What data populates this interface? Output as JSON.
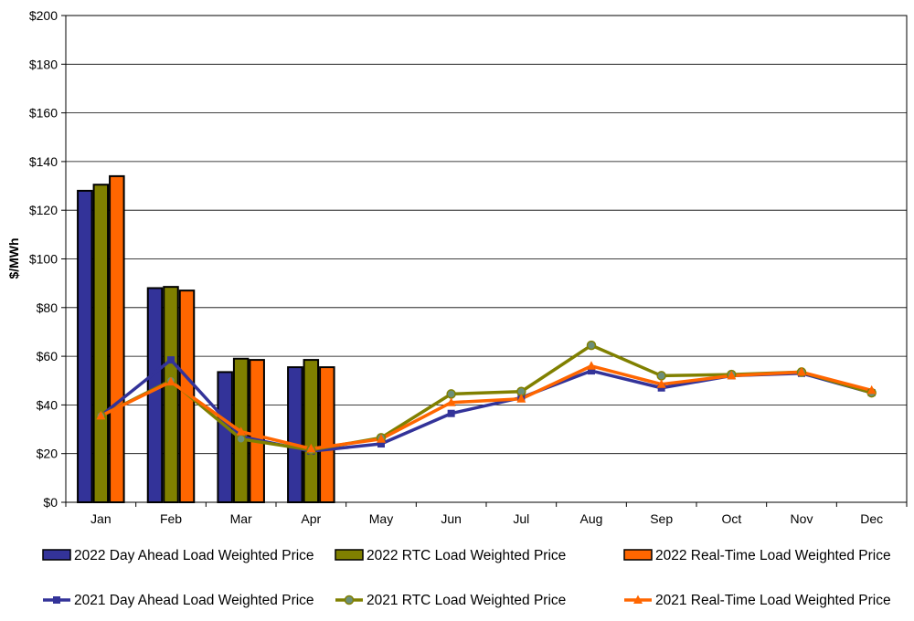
{
  "chart_data": {
    "type": "bar",
    "title": "",
    "xlabel": "",
    "ylabel": "$/MWh",
    "ylim": [
      0,
      200
    ],
    "yticks": [
      0,
      20,
      40,
      60,
      80,
      100,
      120,
      140,
      160,
      180,
      200
    ],
    "ytick_labels": [
      "$0",
      "$20",
      "$40",
      "$60",
      "$80",
      "$100",
      "$120",
      "$140",
      "$160",
      "$180",
      "$200"
    ],
    "grid": true,
    "legend_position": "bottom",
    "categories": [
      "Jan",
      "Feb",
      "Mar",
      "Apr",
      "May",
      "Jun",
      "Jul",
      "Aug",
      "Sep",
      "Oct",
      "Nov",
      "Dec"
    ],
    "bar_series": [
      {
        "name": "2022 Day Ahead Load Weighted Price",
        "color": "#333399",
        "values": [
          128,
          88,
          53.5,
          55.5,
          null,
          null,
          null,
          null,
          null,
          null,
          null,
          null
        ]
      },
      {
        "name": "2022 RTC Load Weighted Price",
        "color": "#808000",
        "values": [
          130.5,
          88.5,
          59,
          58.5,
          null,
          null,
          null,
          null,
          null,
          null,
          null,
          null
        ]
      },
      {
        "name": "2022 Real-Time Load Weighted Price",
        "color": "#FF6600",
        "values": [
          134,
          87,
          58.5,
          55.5,
          null,
          null,
          null,
          null,
          null,
          null,
          null,
          null
        ]
      }
    ],
    "line_series": [
      {
        "name": "2021 Day Ahead Load Weighted Price",
        "color": "#333399",
        "marker": "square",
        "values": [
          35.5,
          58.5,
          27,
          21,
          24,
          36.5,
          43,
          54,
          47,
          52,
          53,
          45
        ]
      },
      {
        "name": "2021 RTC Load Weighted Price",
        "color": "#808000",
        "marker": "circle",
        "values": [
          35.5,
          50,
          26,
          21.5,
          26.5,
          44.5,
          45.5,
          64.5,
          52,
          52.5,
          53.5,
          45
        ]
      },
      {
        "name": "2021 Real-Time Load Weighted Price",
        "color": "#FF6600",
        "marker": "triangle",
        "values": [
          35.5,
          49.5,
          29,
          22,
          26,
          41,
          42.5,
          56,
          48.5,
          52,
          53.5,
          46
        ]
      }
    ]
  }
}
